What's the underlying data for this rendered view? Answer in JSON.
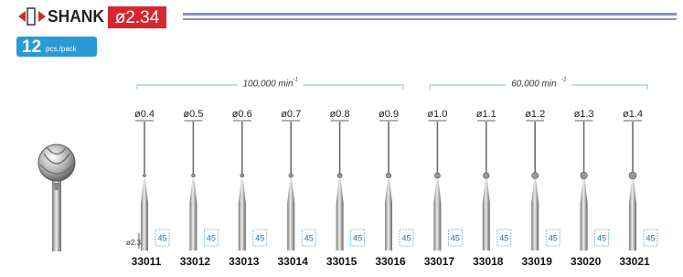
{
  "header": {
    "shank_label": "SHANK",
    "shank_diameter": "ø2.34"
  },
  "pack": {
    "count": "12",
    "unit": "pcs./pack"
  },
  "speed_groups": [
    {
      "speed": "100,000 min",
      "exponent": "-1"
    },
    {
      "speed": "60,000 min",
      "exponent": "-1"
    }
  ],
  "shank_note": "ø2.34",
  "items": [
    {
      "diameter": "ø0.4",
      "code": "33011",
      "length": "45"
    },
    {
      "diameter": "ø0.5",
      "code": "33012",
      "length": "45"
    },
    {
      "diameter": "ø0.6",
      "code": "33013",
      "length": "45"
    },
    {
      "diameter": "ø0.7",
      "code": "33014",
      "length": "45"
    },
    {
      "diameter": "ø0.8",
      "code": "33015",
      "length": "45"
    },
    {
      "diameter": "ø0.9",
      "code": "33016",
      "length": "45"
    },
    {
      "diameter": "ø1.0",
      "code": "33017",
      "length": "45"
    },
    {
      "diameter": "ø1.1",
      "code": "33018",
      "length": "45"
    },
    {
      "diameter": "ø1.2",
      "code": "33019",
      "length": "45"
    },
    {
      "diameter": "ø1.3",
      "code": "33020",
      "length": "45"
    },
    {
      "diameter": "ø1.4",
      "code": "33021",
      "length": "45"
    }
  ]
}
